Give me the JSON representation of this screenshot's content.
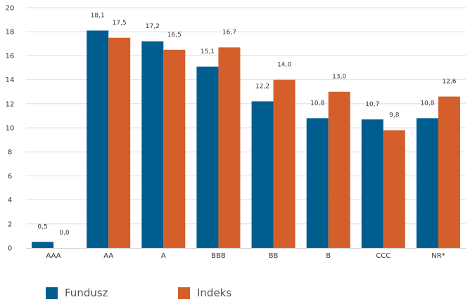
{
  "chart_data": {
    "type": "bar",
    "categories": [
      "AAA",
      "AA",
      "A",
      "BBB",
      "BB",
      "B",
      "CCC",
      "NR*"
    ],
    "series": [
      {
        "name": "Fundusz",
        "color": "#005e8e",
        "values": [
          0.5,
          18.1,
          17.2,
          15.1,
          12.2,
          10.8,
          10.7,
          10.8
        ],
        "labels": [
          "0,5",
          "18,1",
          "17,2",
          "15,1",
          "12,2",
          "10,8",
          "10,7",
          "10,8"
        ]
      },
      {
        "name": "Indeks",
        "color": "#d45f2a",
        "values": [
          0.0,
          17.5,
          16.5,
          16.7,
          14.0,
          13.0,
          9.8,
          12.6
        ],
        "labels": [
          "0,0",
          "17,5",
          "16,5",
          "16,7",
          "14,0",
          "13,0",
          "9,8",
          "12,6"
        ]
      }
    ],
    "yticks": [
      "0",
      "2",
      "4",
      "6",
      "8",
      "10",
      "12",
      "14",
      "16",
      "18",
      "20"
    ],
    "ylim": [
      0,
      20
    ],
    "grid": true,
    "legend": "bottom-left"
  }
}
